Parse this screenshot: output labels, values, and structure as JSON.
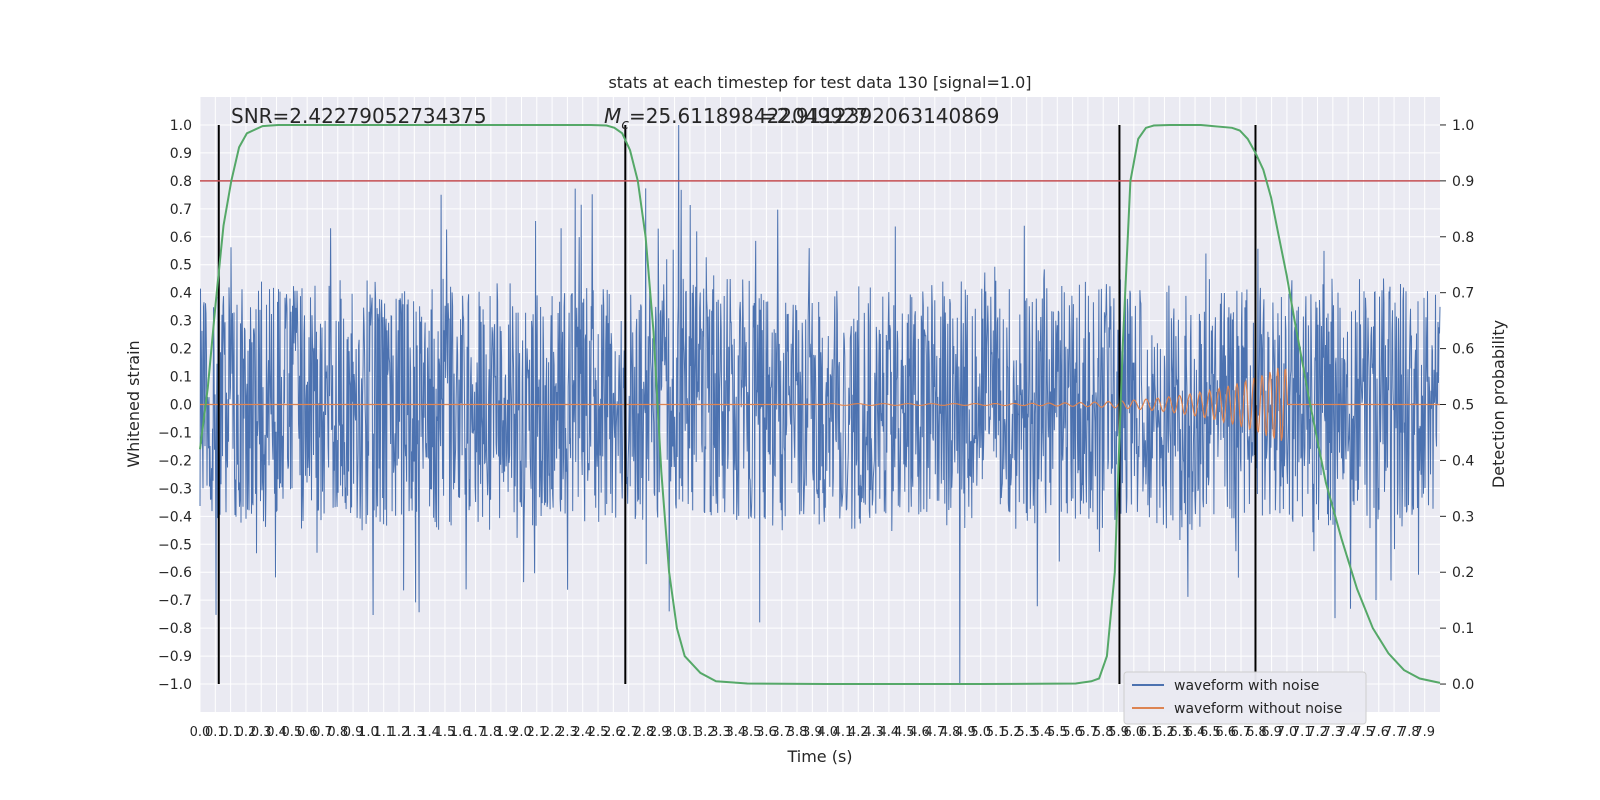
{
  "chart_data": {
    "type": "line",
    "title": "stats at each timestep for test data 130 [signal=1.0]",
    "xlabel": "Time (s)",
    "ylabel_left": "Whitened strain",
    "ylabel_right": "Detection probability",
    "xlim": [
      0.0,
      7.93
    ],
    "ylim_left": [
      -1.1,
      1.1
    ],
    "ylim_right": [
      -0.05,
      1.05
    ],
    "x_ticks": [
      "0.0",
      "0.1",
      "0.1",
      "0.2",
      "0.3",
      "0.4",
      "0.5",
      "0.6",
      "0.7",
      "0.8",
      "0.9",
      "1.0",
      "1.1",
      "1.2",
      "1.3",
      "1.4",
      "1.5",
      "1.6",
      "1.7",
      "1.8",
      "1.9",
      "2.0",
      "2.1",
      "2.2",
      "2.3",
      "2.4",
      "2.5",
      "2.6",
      "2.7",
      "2.8",
      "2.9",
      "3.0",
      "3.1",
      "3.2",
      "3.3",
      "3.4",
      "3.5",
      "3.6",
      "3.7",
      "3.8",
      "3.9",
      "4.0",
      "4.1",
      "4.2",
      "4.3",
      "4.4",
      "4.5",
      "4.6",
      "4.7",
      "4.8",
      "4.9",
      "5.0",
      "5.1",
      "5.2",
      "5.3",
      "5.4",
      "5.5",
      "5.6",
      "5.7",
      "5.8",
      "5.9",
      "6.0",
      "6.1",
      "6.2",
      "6.3",
      "6.4",
      "6.5",
      "6.6",
      "6.7",
      "6.8",
      "6.9",
      "7.0",
      "7.1",
      "7.2",
      "7.3",
      "7.4",
      "7.5",
      "7.6",
      "7.7",
      "7.8",
      "7.9"
    ],
    "y_ticks_left": [
      "-1.0",
      "-0.9",
      "-0.8",
      "-0.7",
      "-0.6",
      "-0.5",
      "-0.4",
      "-0.3",
      "-0.2",
      "-0.1",
      "0.0",
      "0.1",
      "0.2",
      "0.3",
      "0.4",
      "0.5",
      "0.6",
      "0.7",
      "0.8",
      "0.9",
      "1.0"
    ],
    "y_ticks_right": [
      "0.0",
      "0.1",
      "0.2",
      "0.3",
      "0.4",
      "0.5",
      "0.6",
      "0.7",
      "0.8",
      "0.9",
      "1.0"
    ],
    "annotations": {
      "snr": "SNR=2.42279052734375",
      "mc_symbol": "M",
      "mc_sub": "c",
      "mc_value": "=25.611898422049927",
      "q_overlap": "=2.9112392063140869"
    },
    "threshold": {
      "value": 0.8,
      "color": "#c44e52"
    },
    "vertical_lines_x": [
      0.12,
      2.72,
      5.88,
      6.75
    ],
    "grid": true,
    "legend": {
      "position": "lower-right",
      "entries": [
        "waveform with noise",
        "waveform without noise"
      ]
    },
    "series": [
      {
        "name": "waveform with noise",
        "color": "#4c72b0",
        "envelope_upper": 0.42,
        "envelope_lower": -0.45,
        "peak_max": 1.0,
        "peak_min": -1.0
      },
      {
        "name": "waveform without noise",
        "color": "#dd8452",
        "chirp_start_x": 4.0,
        "chirp_peak_x": 6.9,
        "chirp_peak_amplitude": 0.13
      },
      {
        "name": "detection probability",
        "color": "#55a868",
        "x": [
          0.0,
          0.05,
          0.1,
          0.15,
          0.2,
          0.25,
          0.3,
          0.4,
          0.5,
          0.6,
          0.8,
          1.0,
          1.5,
          2.0,
          2.5,
          2.6,
          2.65,
          2.7,
          2.75,
          2.8,
          2.85,
          2.9,
          2.95,
          3.0,
          3.05,
          3.1,
          3.2,
          3.3,
          3.5,
          4.0,
          5.0,
          5.6,
          5.7,
          5.75,
          5.8,
          5.85,
          5.9,
          5.95,
          6.0,
          6.05,
          6.1,
          6.2,
          6.4,
          6.6,
          6.65,
          6.7,
          6.75,
          6.8,
          6.85,
          6.9,
          6.95,
          7.0,
          7.1,
          7.2,
          7.3,
          7.4,
          7.5,
          7.6,
          7.7,
          7.8,
          7.93
        ],
        "y": [
          0.42,
          0.53,
          0.68,
          0.82,
          0.9,
          0.96,
          0.985,
          0.998,
          1.0,
          1.0,
          1.0,
          1.0,
          1.0,
          1.0,
          1.0,
          0.999,
          0.995,
          0.985,
          0.955,
          0.9,
          0.8,
          0.63,
          0.38,
          0.2,
          0.1,
          0.05,
          0.02,
          0.005,
          0.001,
          0.0,
          0.0,
          0.001,
          0.005,
          0.01,
          0.05,
          0.2,
          0.6,
          0.9,
          0.975,
          0.995,
          0.999,
          1.0,
          1.0,
          0.995,
          0.99,
          0.975,
          0.95,
          0.92,
          0.87,
          0.8,
          0.73,
          0.65,
          0.5,
          0.36,
          0.26,
          0.17,
          0.1,
          0.055,
          0.025,
          0.01,
          0.002
        ]
      }
    ]
  }
}
